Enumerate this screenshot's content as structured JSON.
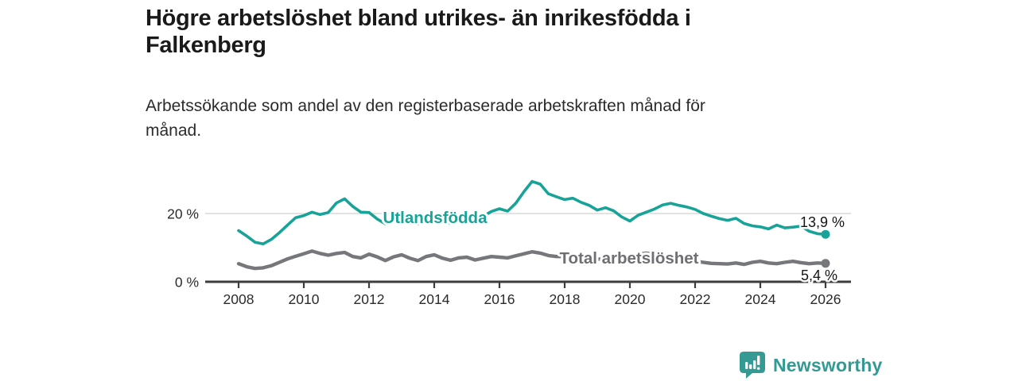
{
  "page": {
    "title_line1": "Högre arbetslöshet bland utrikes- än inrikesfödda i",
    "title_line2": "Falkenberg",
    "subtitle_line1": "Arbetssökande som andel av den registerbaserade arbetskraften månad för",
    "subtitle_line2": "månad."
  },
  "footer": {
    "brand": "Newsworthy",
    "brand_color": "#339a93"
  },
  "chart_data": {
    "type": "line",
    "title": "Högre arbetslöshet bland utrikes- än inrikesfödda i Falkenberg",
    "subtitle": "Arbetssökande som andel av den registerbaserade arbetskraften månad för månad.",
    "y_unit": "%",
    "xlim": [
      2008,
      2026.2
    ],
    "ylim": [
      0,
      30
    ],
    "grid": "horizontal gridline at 20 % only",
    "legend_position": "inline labels on lines",
    "axis_color": "#3d3d3f",
    "grid_color": "#d8d8d9",
    "x_ticks": [
      2008,
      2010,
      2012,
      2014,
      2016,
      2018,
      2020,
      2022,
      2024,
      2026
    ],
    "y_ticks": [
      {
        "value": 0,
        "label": "0 %"
      },
      {
        "value": 20,
        "label": "20 %"
      }
    ],
    "x": [
      2008,
      2008.25,
      2008.5,
      2008.75,
      2009,
      2009.25,
      2009.5,
      2009.75,
      2010,
      2010.25,
      2010.5,
      2010.75,
      2011,
      2011.25,
      2011.5,
      2011.75,
      2012,
      2012.25,
      2012.5,
      2012.75,
      2013,
      2013.25,
      2013.5,
      2013.75,
      2014,
      2014.25,
      2014.5,
      2014.75,
      2015,
      2015.25,
      2015.5,
      2015.75,
      2016,
      2016.25,
      2016.5,
      2016.75,
      2017,
      2017.25,
      2017.5,
      2017.75,
      2018,
      2018.25,
      2018.5,
      2018.75,
      2019,
      2019.25,
      2019.5,
      2019.75,
      2020,
      2020.25,
      2020.5,
      2020.75,
      2021,
      2021.25,
      2021.5,
      2021.75,
      2022,
      2022.25,
      2022.5,
      2022.75,
      2023,
      2023.25,
      2023.5,
      2023.75,
      2024,
      2024.25,
      2024.5,
      2024.75,
      2025,
      2025.25,
      2025.5,
      2025.75,
      2026
    ],
    "series": [
      {
        "name": "Utlandsfödda",
        "color": "#17a398",
        "end_label": "13,9 %",
        "end_value": 13.9,
        "values": [
          15.0,
          13.4,
          11.6,
          11.1,
          12.4,
          14.4,
          16.6,
          18.8,
          19.4,
          20.4,
          19.7,
          20.3,
          23.1,
          24.3,
          22.1,
          20.4,
          20.3,
          18.4,
          17.0,
          18.8,
          19.6,
          17.2,
          16.9,
          18.9,
          19.7,
          17.4,
          17.1,
          18.7,
          19.5,
          18.3,
          19.2,
          20.6,
          21.4,
          20.7,
          23.0,
          26.4,
          29.4,
          28.6,
          25.8,
          24.9,
          24.1,
          24.5,
          23.3,
          22.4,
          21.0,
          21.7,
          20.8,
          19.0,
          17.8,
          19.5,
          20.4,
          21.3,
          22.5,
          23.0,
          22.4,
          21.9,
          21.2,
          20.0,
          19.2,
          18.5,
          18.0,
          18.6,
          17.1,
          16.4,
          16.1,
          15.5,
          16.6,
          15.8,
          16.0,
          16.3,
          14.8,
          14.1,
          13.9
        ]
      },
      {
        "name": "Total arbetslöshet",
        "color": "#76777b",
        "end_label": "5,4 %",
        "end_value": 5.4,
        "values": [
          5.3,
          4.4,
          3.9,
          4.1,
          4.7,
          5.7,
          6.7,
          7.5,
          8.2,
          9.0,
          8.3,
          7.8,
          8.3,
          8.6,
          7.4,
          7.0,
          8.1,
          7.3,
          6.2,
          7.3,
          7.9,
          6.9,
          6.2,
          7.4,
          7.9,
          6.9,
          6.3,
          7.0,
          7.2,
          6.4,
          6.9,
          7.4,
          7.2,
          7.0,
          7.6,
          8.2,
          8.8,
          8.4,
          7.7,
          7.4,
          7.4,
          7.6,
          7.1,
          6.8,
          6.6,
          6.8,
          6.5,
          6.3,
          6.6,
          8.0,
          8.4,
          8.1,
          7.7,
          7.3,
          6.9,
          6.4,
          6.0,
          5.7,
          5.4,
          5.3,
          5.2,
          5.5,
          5.1,
          5.7,
          6.0,
          5.5,
          5.3,
          5.7,
          6.0,
          5.6,
          5.3,
          5.5,
          5.4
        ]
      }
    ]
  }
}
